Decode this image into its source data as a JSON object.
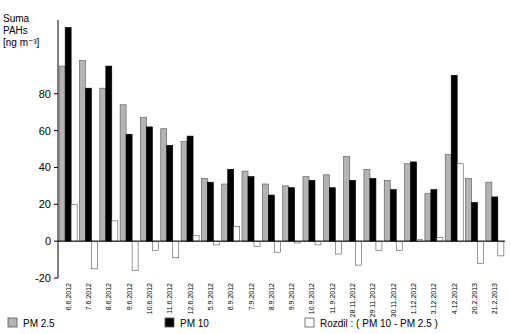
{
  "chart_data": {
    "type": "bar",
    "y_label": "Suma\nPAHs\n[ng m⁻³]",
    "categories": [
      "6.6.2012",
      "7.6.2012",
      "8.6.2012",
      "9.6.2012",
      "10.6.2012",
      "11.6.2012",
      "12.6.2012",
      "5.9.2012",
      "6.9.2012",
      "7.9.2012",
      "8.9.2012",
      "9.9.2012",
      "10.9.2012",
      "11.9.2012",
      "28.11.2012",
      "29.11.2012",
      "30.11.2012",
      "1.12.2012",
      "3.12.2012",
      "4.12.2012",
      "20.2.2013",
      "21.2.2013"
    ],
    "series": [
      {
        "name": "PM 2.5",
        "color": "#b3b3b3",
        "values": [
          95,
          98,
          83,
          74,
          67,
          61,
          54,
          34,
          31,
          38,
          31,
          30,
          35,
          36,
          46,
          39,
          33,
          42,
          26,
          47,
          34,
          32
        ]
      },
      {
        "name": "PM 10",
        "color": "#000000",
        "values": [
          116,
          83,
          95,
          58,
          62,
          52,
          57,
          32,
          39,
          35,
          25,
          29,
          33,
          29,
          33,
          34,
          28,
          43,
          28,
          90,
          21,
          24
        ]
      },
      {
        "name": "Rozdil : ( PM 10 - PM 2.5 )",
        "color": "#ffffff",
        "values": [
          20,
          -15,
          11,
          -16,
          -5,
          -9,
          3,
          -2,
          8,
          -3,
          -6,
          -1,
          -2,
          -7,
          -13,
          -5,
          -5,
          1,
          2,
          42,
          -12,
          -8
        ]
      }
    ],
    "ylim": [
      -20,
      120
    ],
    "yticks": [
      -20,
      0,
      20,
      40,
      60,
      80
    ],
    "legend": "bottom"
  }
}
